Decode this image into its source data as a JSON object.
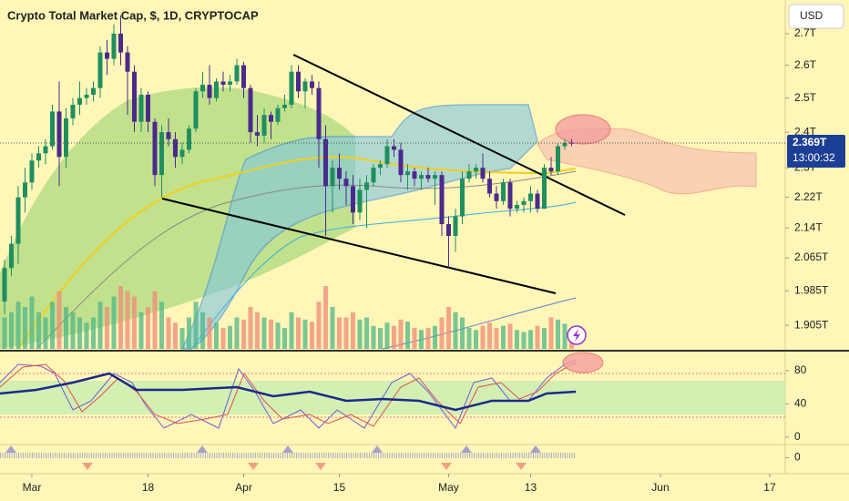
{
  "chart_data": {
    "type": "candlestick",
    "title": "Crypto Total Market Cap, $, 1D, CRYPTOCAP",
    "currency": "USD",
    "last_price": {
      "value": 2.369,
      "label": "2.369T"
    },
    "countdown": "13:00:32",
    "up_color": "#1f8f5f",
    "down_color": "#4b2a8c",
    "log_scale": true,
    "ylim": [
      1.852,
      2.811
    ],
    "yticks": [
      {
        "value": 2.7,
        "label": "2.7T"
      },
      {
        "value": 2.6,
        "label": "2.6T"
      },
      {
        "value": 2.5,
        "label": "2.5T"
      },
      {
        "value": 2.4,
        "label": "2.4T"
      },
      {
        "value": 2.3,
        "label": "2.3T"
      },
      {
        "value": 2.22,
        "label": "2.22T"
      },
      {
        "value": 2.14,
        "label": "2.14T"
      },
      {
        "value": 2.065,
        "label": "2.065T"
      },
      {
        "value": 1.985,
        "label": "1.985T"
      },
      {
        "value": 1.905,
        "label": "1.905T"
      }
    ],
    "xlim": [
      -0.667,
      114.27
    ],
    "xticks": [
      {
        "value": 4,
        "label": "Mar"
      },
      {
        "value": 21,
        "label": "18"
      },
      {
        "value": 35,
        "label": "Apr"
      },
      {
        "value": 49,
        "label": "15"
      },
      {
        "value": 65,
        "label": "May"
      },
      {
        "value": 77,
        "label": "13"
      },
      {
        "value": 96,
        "label": "Jun"
      },
      {
        "value": 112,
        "label": "17"
      }
    ],
    "open": [
      1.96,
      2.04,
      2.1,
      2.22,
      2.26,
      2.32,
      2.34,
      2.36,
      2.46,
      2.33,
      2.44,
      2.48,
      2.5,
      2.51,
      2.53,
      2.64,
      2.62,
      2.7,
      2.64,
      2.58,
      2.43,
      2.51,
      2.43,
      2.28,
      2.4,
      2.38,
      2.33,
      2.35,
      2.41,
      2.52,
      2.54,
      2.5,
      2.55,
      2.54,
      2.55,
      2.6,
      2.53,
      2.4,
      2.39,
      2.45,
      2.43,
      2.47,
      2.48,
      2.58,
      2.52,
      2.55,
      2.53,
      2.38,
      2.25,
      2.3,
      2.27,
      2.25,
      2.18,
      2.24,
      2.26,
      2.3,
      2.31,
      2.36,
      2.35,
      2.28,
      2.29,
      2.27,
      2.28,
      2.27,
      2.28,
      2.15,
      2.12,
      2.17,
      2.27,
      2.29,
      2.3,
      2.27,
      2.23,
      2.21,
      2.26,
      2.19,
      2.2,
      2.21,
      2.23,
      2.19,
      2.3,
      2.29,
      2.36,
      2.37
    ],
    "high": [
      2.06,
      2.12,
      2.25,
      2.3,
      2.34,
      2.36,
      2.38,
      2.48,
      2.55,
      2.47,
      2.5,
      2.55,
      2.53,
      2.55,
      2.66,
      2.68,
      2.73,
      2.76,
      2.66,
      2.6,
      2.53,
      2.52,
      2.44,
      2.42,
      2.44,
      2.4,
      2.37,
      2.42,
      2.53,
      2.58,
      2.6,
      2.56,
      2.58,
      2.57,
      2.62,
      2.61,
      2.54,
      2.45,
      2.47,
      2.46,
      2.48,
      2.51,
      2.6,
      2.6,
      2.56,
      2.57,
      2.55,
      2.42,
      2.32,
      2.34,
      2.29,
      2.28,
      2.27,
      2.28,
      2.31,
      2.32,
      2.38,
      2.38,
      2.37,
      2.31,
      2.3,
      2.29,
      2.3,
      2.29,
      2.29,
      2.17,
      2.19,
      2.29,
      2.31,
      2.31,
      2.34,
      2.29,
      2.25,
      2.27,
      2.27,
      2.21,
      2.22,
      2.25,
      2.24,
      2.31,
      2.33,
      2.37,
      2.38,
      2.38
    ],
    "low": [
      1.93,
      2.02,
      2.05,
      2.18,
      2.24,
      2.3,
      2.31,
      2.35,
      2.25,
      2.3,
      2.42,
      2.45,
      2.48,
      2.49,
      2.5,
      2.57,
      2.6,
      2.6,
      2.45,
      2.4,
      2.4,
      2.4,
      2.25,
      2.22,
      2.36,
      2.3,
      2.31,
      2.34,
      2.4,
      2.5,
      2.48,
      2.49,
      2.52,
      2.52,
      2.54,
      2.5,
      2.37,
      2.36,
      2.37,
      2.38,
      2.42,
      2.46,
      2.47,
      2.5,
      2.47,
      2.51,
      2.3,
      2.12,
      2.18,
      2.24,
      2.2,
      2.15,
      2.16,
      2.14,
      2.25,
      2.28,
      2.3,
      2.33,
      2.26,
      2.24,
      2.25,
      2.24,
      2.26,
      2.2,
      2.12,
      2.04,
      2.08,
      2.15,
      2.26,
      2.27,
      2.26,
      2.22,
      2.19,
      2.2,
      2.17,
      2.18,
      2.18,
      2.18,
      2.18,
      2.19,
      2.28,
      2.28,
      2.35,
      2.36
    ],
    "close": [
      2.04,
      2.1,
      2.22,
      2.26,
      2.32,
      2.34,
      2.36,
      2.46,
      2.33,
      2.44,
      2.48,
      2.5,
      2.51,
      2.53,
      2.64,
      2.62,
      2.7,
      2.64,
      2.58,
      2.43,
      2.51,
      2.43,
      2.28,
      2.4,
      2.38,
      2.33,
      2.35,
      2.41,
      2.52,
      2.54,
      2.5,
      2.55,
      2.54,
      2.55,
      2.6,
      2.53,
      2.4,
      2.39,
      2.45,
      2.43,
      2.47,
      2.48,
      2.58,
      2.52,
      2.55,
      2.53,
      2.38,
      2.25,
      2.3,
      2.27,
      2.25,
      2.18,
      2.24,
      2.26,
      2.3,
      2.31,
      2.36,
      2.35,
      2.28,
      2.29,
      2.27,
      2.28,
      2.27,
      2.28,
      2.15,
      2.12,
      2.17,
      2.27,
      2.29,
      2.3,
      2.27,
      2.23,
      2.21,
      2.26,
      2.19,
      2.2,
      2.21,
      2.23,
      2.19,
      2.3,
      2.29,
      2.36,
      2.37,
      2.369
    ],
    "volume": [
      30,
      35,
      45,
      40,
      50,
      35,
      30,
      45,
      55,
      40,
      35,
      30,
      25,
      30,
      45,
      40,
      50,
      60,
      55,
      50,
      35,
      40,
      55,
      45,
      30,
      25,
      20,
      30,
      45,
      35,
      30,
      25,
      20,
      22,
      30,
      28,
      40,
      35,
      30,
      28,
      25,
      20,
      35,
      30,
      28,
      26,
      45,
      60,
      40,
      30,
      30,
      35,
      28,
      30,
      22,
      20,
      25,
      22,
      28,
      26,
      20,
      18,
      20,
      22,
      30,
      40,
      35,
      30,
      20,
      18,
      22,
      25,
      20,
      22,
      24,
      18,
      16,
      18,
      22,
      20,
      30,
      28,
      24,
      14
    ],
    "volume_ylim": [
      0,
      100
    ],
    "oscillator": {
      "ylim": [
        -8,
        102.9
      ],
      "yticks": [
        80,
        40,
        0
      ]
    },
    "histogram": {
      "ylim": [
        -1.25,
        1
      ],
      "yticks": [
        0
      ]
    }
  }
}
